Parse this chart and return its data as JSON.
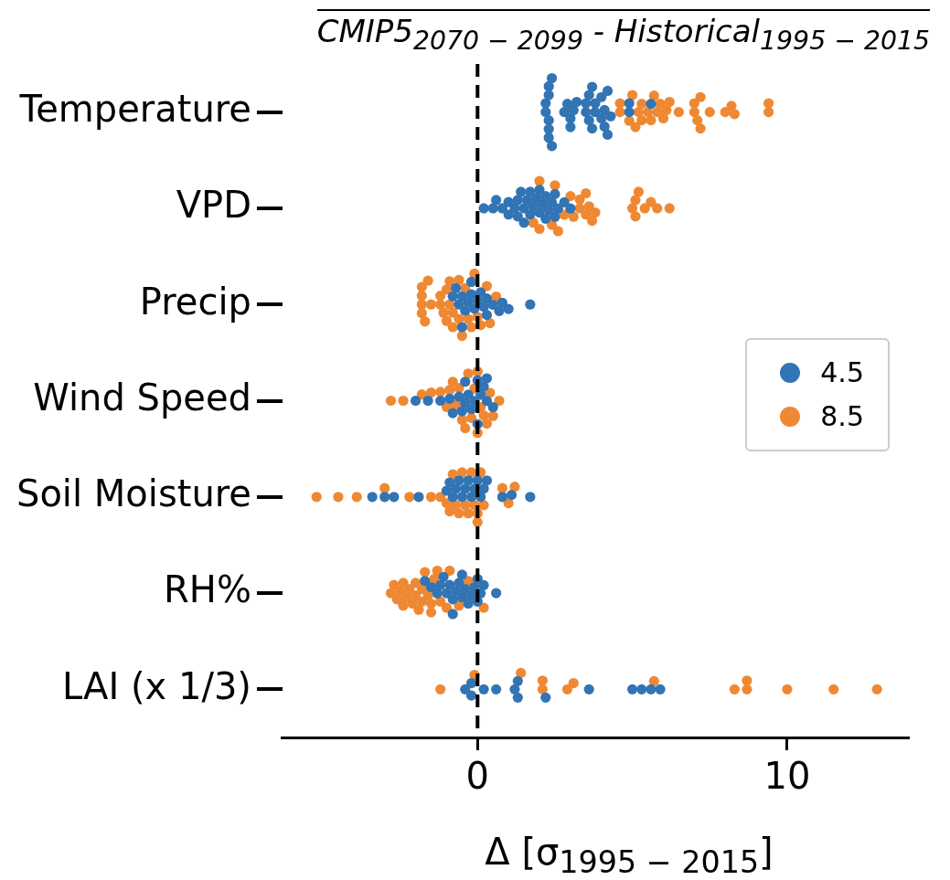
{
  "chart_data": {
    "type": "scatter",
    "orientation": "horizontal",
    "title": "CMIP5$_{2070 − 2099}$ - Historical$_{1995 − 2015}$",
    "xlabel": "Δ [σ$_{1995 − 2015}$]",
    "categories": [
      "Temperature",
      "VPD",
      "Precip",
      "Wind Speed",
      "Soil Moisture",
      "RH%",
      "LAI (x 1/3)"
    ],
    "xlim": [
      -6.3,
      13.9
    ],
    "xticks": [
      0,
      10
    ],
    "marker": "circle",
    "legend": "right",
    "ref_lines": [
      {
        "axis": "x",
        "value": 0,
        "color": "#000000",
        "line_style": "dashed"
      }
    ],
    "series": [
      {
        "name": "4.5",
        "color": "#3274b4",
        "x": [
          "Temperature",
          "Temperature",
          "Temperature",
          "Temperature",
          "Temperature",
          "Temperature",
          "Temperature",
          "Temperature",
          "Temperature",
          "Temperature",
          "Temperature",
          "Temperature",
          "Temperature",
          "Temperature",
          "Temperature",
          "Temperature",
          "Temperature",
          "Temperature",
          "Temperature",
          "Temperature",
          "Temperature",
          "Temperature",
          "Temperature",
          "Temperature",
          "Temperature",
          "Temperature",
          "Temperature",
          "Temperature",
          "Temperature",
          "Temperature",
          "Temperature",
          "Temperature",
          "Temperature",
          "VPD",
          "VPD",
          "VPD",
          "VPD",
          "VPD",
          "VPD",
          "VPD",
          "VPD",
          "VPD",
          "VPD",
          "VPD",
          "VPD",
          "VPD",
          "VPD",
          "VPD",
          "VPD",
          "VPD",
          "VPD",
          "VPD",
          "VPD",
          "VPD",
          "VPD",
          "VPD",
          "VPD",
          "VPD",
          "VPD",
          "VPD",
          "VPD",
          "VPD",
          "Precip",
          "Precip",
          "Precip",
          "Precip",
          "Precip",
          "Precip",
          "Precip",
          "Precip",
          "Precip",
          "Precip",
          "Precip",
          "Precip",
          "Precip",
          "Precip",
          "Precip",
          "Precip",
          "Precip",
          "Precip",
          "Precip",
          "Precip",
          "Wind Speed",
          "Wind Speed",
          "Wind Speed",
          "Wind Speed",
          "Wind Speed",
          "Wind Speed",
          "Wind Speed",
          "Wind Speed",
          "Wind Speed",
          "Wind Speed",
          "Wind Speed",
          "Wind Speed",
          "Wind Speed",
          "Wind Speed",
          "Wind Speed",
          "Wind Speed",
          "Wind Speed",
          "Wind Speed",
          "Wind Speed",
          "Soil Moisture",
          "Soil Moisture",
          "Soil Moisture",
          "Soil Moisture",
          "Soil Moisture",
          "Soil Moisture",
          "Soil Moisture",
          "Soil Moisture",
          "Soil Moisture",
          "Soil Moisture",
          "Soil Moisture",
          "Soil Moisture",
          "Soil Moisture",
          "Soil Moisture",
          "Soil Moisture",
          "Soil Moisture",
          "Soil Moisture",
          "Soil Moisture",
          "Soil Moisture",
          "Soil Moisture",
          "Soil Moisture",
          "RH%",
          "RH%",
          "RH%",
          "RH%",
          "RH%",
          "RH%",
          "RH%",
          "RH%",
          "RH%",
          "RH%",
          "RH%",
          "RH%",
          "RH%",
          "RH%",
          "RH%",
          "RH%",
          "RH%",
          "RH%",
          "RH%",
          "RH%",
          "RH%",
          "RH%",
          "LAI (x 1/3)",
          "LAI (x 1/3)",
          "LAI (x 1/3)",
          "LAI (x 1/3)",
          "LAI (x 1/3)",
          "LAI (x 1/3)",
          "LAI (x 1/3)",
          "LAI (x 1/3)",
          "LAI (x 1/3)",
          "LAI (x 1/3)",
          "LAI (x 1/3)",
          "LAI (x 1/3)",
          "LAI (x 1/3)",
          "LAI (x 1/3)"
        ],
        "values": [
          2.2,
          2.2,
          2.3,
          2.3,
          2.3,
          2.3,
          2.3,
          2.4,
          2.4,
          2.8,
          2.9,
          3.0,
          3.0,
          3.1,
          3.2,
          3.5,
          3.5,
          3.6,
          3.6,
          3.7,
          3.7,
          3.8,
          3.8,
          4.0,
          4.0,
          4.1,
          4.1,
          4.2,
          4.2,
          4.3,
          4.9,
          4.9,
          5.6,
          0.2,
          0.5,
          0.6,
          0.8,
          1.0,
          1.0,
          1.2,
          1.3,
          1.4,
          1.5,
          1.5,
          1.6,
          1.7,
          1.8,
          1.9,
          2.0,
          2.0,
          2.1,
          2.2,
          2.3,
          2.4,
          2.5,
          2.5,
          2.6,
          2.8,
          3.0,
          1.3,
          1.7,
          2.2,
          -0.8,
          -0.7,
          -0.6,
          -0.5,
          -0.4,
          -0.3,
          -0.2,
          -0.1,
          0.0,
          0.1,
          0.2,
          0.3,
          0.5,
          0.7,
          0.8,
          1.0,
          1.7,
          -0.5,
          -0.2,
          0.3,
          -2.0,
          -1.6,
          -1.2,
          -0.9,
          -0.8,
          -0.6,
          -0.5,
          -0.4,
          -0.3,
          -0.2,
          -0.1,
          0.0,
          0.1,
          0.2,
          0.3,
          0.5,
          -0.4,
          0.0,
          0.3,
          -3.4,
          -3.0,
          -2.7,
          -1.9,
          -1.0,
          -0.9,
          -0.8,
          -0.6,
          -0.5,
          -0.4,
          -0.3,
          -0.2,
          -0.1,
          0.0,
          0.1,
          0.3,
          0.8,
          1.1,
          1.7,
          -0.7,
          0.2,
          -1.7,
          -1.5,
          -1.3,
          -1.2,
          -1.1,
          -1.0,
          -0.9,
          -0.8,
          -0.7,
          -0.6,
          -0.5,
          -0.4,
          -0.3,
          -0.2,
          -0.1,
          0.0,
          0.1,
          0.2,
          0.6,
          -0.8,
          -0.5,
          0.0,
          -0.4,
          -0.2,
          -0.2,
          0.2,
          0.6,
          1.2,
          1.3,
          1.3,
          2.2,
          3.6,
          5.0,
          5.3,
          5.6,
          5.9
        ]
      },
      {
        "name": "8.5",
        "color": "#ef8833",
        "x": [
          "Temperature",
          "Temperature",
          "Temperature",
          "Temperature",
          "Temperature",
          "Temperature",
          "Temperature",
          "Temperature",
          "Temperature",
          "Temperature",
          "Temperature",
          "Temperature",
          "Temperature",
          "Temperature",
          "Temperature",
          "Temperature",
          "Temperature",
          "Temperature",
          "Temperature",
          "Temperature",
          "Temperature",
          "Temperature",
          "Temperature",
          "Temperature",
          "Temperature",
          "Temperature",
          "Temperature",
          "Temperature",
          "VPD",
          "VPD",
          "VPD",
          "VPD",
          "VPD",
          "VPD",
          "VPD",
          "VPD",
          "VPD",
          "VPD",
          "VPD",
          "VPD",
          "VPD",
          "VPD",
          "VPD",
          "VPD",
          "VPD",
          "VPD",
          "VPD",
          "VPD",
          "VPD",
          "VPD",
          "VPD",
          "VPD",
          "Precip",
          "Precip",
          "Precip",
          "Precip",
          "Precip",
          "Precip",
          "Precip",
          "Precip",
          "Precip",
          "Precip",
          "Precip",
          "Precip",
          "Precip",
          "Precip",
          "Precip",
          "Precip",
          "Precip",
          "Precip",
          "Precip",
          "Precip",
          "Precip",
          "Precip",
          "Precip",
          "Precip",
          "Precip",
          "Precip",
          "Precip",
          "Precip",
          "Wind Speed",
          "Wind Speed",
          "Wind Speed",
          "Wind Speed",
          "Wind Speed",
          "Wind Speed",
          "Wind Speed",
          "Wind Speed",
          "Wind Speed",
          "Wind Speed",
          "Wind Speed",
          "Wind Speed",
          "Wind Speed",
          "Wind Speed",
          "Wind Speed",
          "Wind Speed",
          "Wind Speed",
          "Wind Speed",
          "Wind Speed",
          "Wind Speed",
          "Wind Speed",
          "Wind Speed",
          "Wind Speed",
          "Soil Moisture",
          "Soil Moisture",
          "Soil Moisture",
          "Soil Moisture",
          "Soil Moisture",
          "Soil Moisture",
          "Soil Moisture",
          "Soil Moisture",
          "Soil Moisture",
          "Soil Moisture",
          "Soil Moisture",
          "Soil Moisture",
          "Soil Moisture",
          "Soil Moisture",
          "Soil Moisture",
          "Soil Moisture",
          "Soil Moisture",
          "Soil Moisture",
          "Soil Moisture",
          "Soil Moisture",
          "Soil Moisture",
          "Soil Moisture",
          "Soil Moisture",
          "Soil Moisture",
          "RH%",
          "RH%",
          "RH%",
          "RH%",
          "RH%",
          "RH%",
          "RH%",
          "RH%",
          "RH%",
          "RH%",
          "RH%",
          "RH%",
          "RH%",
          "RH%",
          "RH%",
          "RH%",
          "RH%",
          "RH%",
          "RH%",
          "RH%",
          "RH%",
          "RH%",
          "RH%",
          "RH%",
          "RH%",
          "RH%",
          "LAI (x 1/3)",
          "LAI (x 1/3)",
          "LAI (x 1/3)",
          "LAI (x 1/3)",
          "LAI (x 1/3)",
          "LAI (x 1/3)",
          "LAI (x 1/3)",
          "LAI (x 1/3)",
          "LAI (x 1/3)",
          "LAI (x 1/3)",
          "LAI (x 1/3)",
          "LAI (x 1/3)",
          "LAI (x 1/3)",
          "LAI (x 1/3)"
        ],
        "values": [
          4.6,
          4.6,
          4.9,
          5.0,
          5.1,
          5.2,
          5.3,
          5.3,
          5.5,
          5.6,
          5.7,
          5.8,
          5.9,
          6.0,
          6.1,
          6.2,
          6.5,
          7.0,
          7.0,
          7.1,
          7.2,
          7.2,
          7.5,
          8.0,
          8.2,
          8.3,
          9.4,
          9.4,
          1.8,
          2.0,
          2.0,
          2.4,
          2.5,
          2.6,
          2.8,
          3.0,
          3.1,
          3.3,
          3.3,
          3.5,
          3.5,
          3.6,
          3.7,
          3.8,
          5.0,
          5.1,
          5.1,
          5.2,
          5.4,
          5.6,
          5.8,
          6.2,
          -1.8,
          -1.8,
          -1.8,
          -1.8,
          -1.7,
          -1.6,
          -1.5,
          -1.2,
          -1.2,
          -1.1,
          -1.0,
          -1.0,
          -0.9,
          -0.9,
          -0.8,
          -0.8,
          -0.6,
          -0.5,
          -0.4,
          -0.3,
          -0.2,
          -0.1,
          0.0,
          0.1,
          0.3,
          0.4,
          0.6,
          -0.6,
          -2.8,
          -2.4,
          -1.8,
          -1.5,
          -1.2,
          -1.0,
          -0.9,
          -0.8,
          -0.6,
          -0.5,
          -0.4,
          -0.3,
          -0.2,
          -0.1,
          0.0,
          0.1,
          0.2,
          0.3,
          0.4,
          0.5,
          0.7,
          -0.7,
          0.0,
          -5.2,
          -4.5,
          -3.9,
          -3.0,
          -2.2,
          -1.5,
          -1.2,
          -1.0,
          -0.9,
          -0.8,
          -0.7,
          -0.5,
          -0.4,
          -0.3,
          -0.2,
          -0.1,
          0.0,
          0.0,
          0.1,
          0.2,
          0.8,
          1.0,
          1.2,
          -0.6,
          -2.8,
          -2.7,
          -2.6,
          -2.5,
          -2.4,
          -2.3,
          -2.2,
          -2.1,
          -2.0,
          -2.0,
          -1.9,
          -1.8,
          -1.7,
          -1.6,
          -1.5,
          -1.5,
          -1.4,
          -1.3,
          -1.2,
          -1.0,
          -0.9,
          -0.6,
          -0.3,
          0.2,
          -2.4,
          -1.8,
          -1.2,
          -0.1,
          1.4,
          2.1,
          2.1,
          2.9,
          3.1,
          5.7,
          8.3,
          8.7,
          8.7,
          10.0,
          11.5,
          12.9
        ]
      }
    ]
  }
}
